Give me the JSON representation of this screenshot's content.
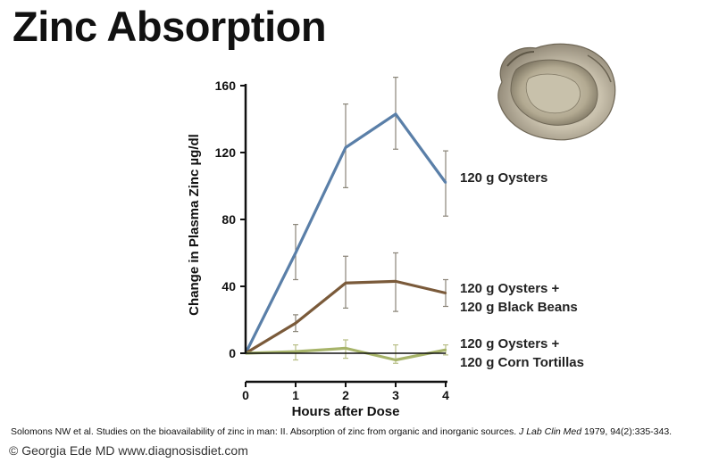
{
  "title": "Zinc Absorption",
  "citation": {
    "authors_text": "Solomons NW et al. Studies on the bioavailability of zinc in man: II. Absorption of zinc from organic and inorganic sources.",
    "journal": "J Lab Clin Med",
    "details": "1979, 94(2):335-343."
  },
  "copyright": "© Georgia Ede MD www.diagnosisdiet.com",
  "image": {
    "icon": "oyster-shell-icon"
  },
  "series_labels": {
    "oysters": [
      "120 g Oysters"
    ],
    "beans": [
      "120 g Oysters +",
      "120 g Black Beans"
    ],
    "tortillas": [
      "120 g Oysters +",
      "120 g Corn Tortillas"
    ]
  },
  "chart_data": {
    "type": "line",
    "xlabel": "Hours after Dose",
    "ylabel": "Change in Plasma Zinc µg/dl",
    "x": [
      0,
      1,
      2,
      3,
      4
    ],
    "xticks": [
      "0",
      "1",
      "2",
      "3",
      "4"
    ],
    "yticks": [
      "0",
      "40",
      "80",
      "120",
      "160"
    ],
    "xlim": [
      0,
      4
    ],
    "ylim": [
      0,
      160
    ],
    "grid": false,
    "series": [
      {
        "name": "120 g Oysters",
        "color": "#5a7fa8",
        "values": [
          0,
          60,
          123,
          143,
          102
        ],
        "err_low": [
          null,
          44,
          99,
          122,
          82
        ],
        "err_high": [
          null,
          77,
          149,
          165,
          121
        ]
      },
      {
        "name": "120 g Oysters + 120 g Black Beans",
        "color": "#7a5a3a",
        "values": [
          0,
          18,
          42,
          43,
          36
        ],
        "err_low": [
          null,
          13,
          27,
          25,
          28
        ],
        "err_high": [
          null,
          23,
          58,
          60,
          44
        ]
      },
      {
        "name": "120 g Oysters + 120 g Corn Tortillas",
        "color": "#a7b46a",
        "values": [
          0,
          1,
          3,
          -4,
          2
        ],
        "err_low": [
          null,
          -4,
          -3,
          -6,
          -1
        ],
        "err_high": [
          null,
          5,
          8,
          5,
          5
        ]
      }
    ]
  }
}
